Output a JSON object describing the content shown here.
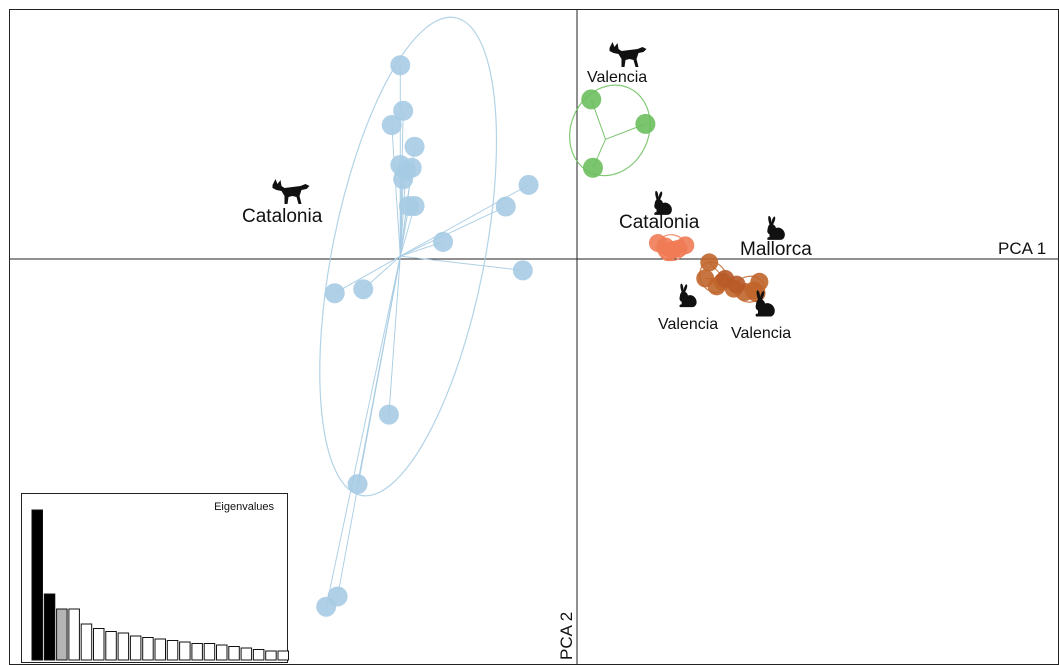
{
  "chart_data": {
    "type": "scatter",
    "title": "",
    "xlabel": "PCA 1",
    "ylabel": "PCA 2",
    "xlim": [
      -10,
      8.4
    ],
    "ylim": [
      -7.0,
      4.4
    ],
    "groups": [
      {
        "id": "catalonia-fox",
        "label": "Catalonia",
        "icon": "fox-icon",
        "color": "#a6cbe3",
        "centroid": [
          -3.1,
          0.05
        ],
        "points": [
          [
            -3.1,
            3.4
          ],
          [
            -3.25,
            2.35
          ],
          [
            -3.05,
            2.6
          ],
          [
            -2.85,
            1.97
          ],
          [
            -3.1,
            1.65
          ],
          [
            -3.05,
            1.4
          ],
          [
            -2.9,
            1.6
          ],
          [
            -2.95,
            0.93
          ],
          [
            -2.85,
            0.93
          ],
          [
            -3.0,
            1.55
          ],
          [
            -0.85,
            1.3
          ],
          [
            -1.25,
            0.92
          ],
          [
            -2.35,
            0.3
          ],
          [
            -0.95,
            -0.2
          ],
          [
            -4.25,
            -0.6
          ],
          [
            -3.75,
            -0.53
          ],
          [
            -3.3,
            -2.73
          ],
          [
            -3.85,
            -3.95
          ],
          [
            -4.2,
            -5.92
          ],
          [
            -4.4,
            -6.1
          ]
        ]
      },
      {
        "id": "valencia-fox",
        "label": "Valencia",
        "icon": "fox-icon",
        "color": "#6cbf5e",
        "centroid": [
          0.5,
          2.1
        ],
        "points": [
          [
            0.25,
            2.8
          ],
          [
            1.2,
            2.37
          ],
          [
            0.28,
            1.6
          ]
        ]
      },
      {
        "id": "catalonia-rabbit",
        "label": "Catalonia",
        "icon": "rabbit-icon",
        "color": "#ef7b55",
        "centroid": [
          1.6,
          0.2
        ],
        "points": [
          [
            1.42,
            0.28
          ],
          [
            1.55,
            0.22
          ],
          [
            1.68,
            0.16
          ],
          [
            1.78,
            0.18
          ],
          [
            1.9,
            0.24
          ],
          [
            1.6,
            0.12
          ]
        ]
      },
      {
        "id": "valencia-rabbit-1",
        "label": "Valencia",
        "icon": "rabbit-icon",
        "color": "#c0652b",
        "centroid": [
          2.6,
          -0.35
        ],
        "points": [
          [
            2.32,
            -0.06
          ],
          [
            2.25,
            -0.34
          ],
          [
            2.45,
            -0.48
          ],
          [
            2.55,
            -0.4
          ]
        ]
      },
      {
        "id": "valencia-rabbit-2",
        "label": "Valencia",
        "icon": "rabbit-icon",
        "color": "#c0652b",
        "centroid": [
          2.95,
          -0.5
        ],
        "points": [
          [
            2.75,
            -0.52
          ],
          [
            2.95,
            -0.58
          ],
          [
            3.1,
            -0.55
          ],
          [
            3.2,
            -0.4
          ],
          [
            3.15,
            -0.6
          ]
        ]
      },
      {
        "id": "mallorca-rabbit",
        "label": "Mallorca",
        "icon": "rabbit-icon",
        "color": "#b85a28",
        "centroid": [
          2.85,
          -0.42
        ],
        "points": [
          [
            2.6,
            -0.35
          ],
          [
            2.8,
            -0.45
          ]
        ]
      }
    ],
    "eigenvalues": {
      "title": "Eigenvalues",
      "values": [
        100,
        44,
        34,
        34,
        24,
        21,
        19,
        18,
        16,
        15,
        14,
        13,
        12,
        11,
        11,
        10,
        9,
        8,
        7,
        6,
        6
      ],
      "colors": [
        "#000000",
        "#000000",
        "#b4b4b4",
        "#ffffff",
        "#ffffff",
        "#ffffff",
        "#ffffff",
        "#ffffff",
        "#ffffff",
        "#ffffff",
        "#ffffff",
        "#ffffff",
        "#ffffff",
        "#ffffff",
        "#ffffff",
        "#ffffff",
        "#ffffff",
        "#ffffff",
        "#ffffff",
        "#ffffff",
        "#ffffff"
      ]
    }
  }
}
